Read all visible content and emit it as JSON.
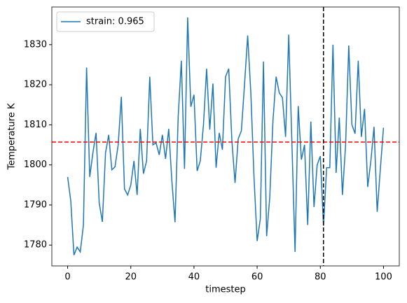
{
  "chart_data": {
    "type": "line",
    "xlabel": "timestep",
    "ylabel": "Temperature K",
    "x": [
      0,
      1,
      2,
      3,
      4,
      5,
      6,
      7,
      8,
      9,
      10,
      11,
      12,
      13,
      14,
      15,
      16,
      17,
      18,
      19,
      20,
      21,
      22,
      23,
      24,
      25,
      26,
      27,
      28,
      29,
      30,
      31,
      32,
      33,
      34,
      35,
      36,
      37,
      38,
      39,
      40,
      41,
      42,
      43,
      44,
      45,
      46,
      47,
      48,
      49,
      50,
      51,
      52,
      53,
      54,
      55,
      56,
      57,
      58,
      59,
      60,
      61,
      62,
      63,
      64,
      65,
      66,
      67,
      68,
      69,
      70,
      71,
      72,
      73,
      74,
      75,
      76,
      77,
      78,
      79,
      80,
      81,
      82,
      83,
      84,
      85,
      86,
      87,
      88,
      89,
      90,
      91,
      92,
      93,
      94,
      95,
      96,
      97,
      98,
      99,
      100
    ],
    "series": [
      {
        "name": "strain: 0.965",
        "color": "#1f77b4",
        "values": [
          1797,
          1791,
          1777.5,
          1779.5,
          1778.3,
          1785,
          1824.3,
          1797,
          1803,
          1808,
          1790.5,
          1785.8,
          1803,
          1807.5,
          1798.8,
          1799.5,
          1805,
          1817,
          1794,
          1792.5,
          1795,
          1801,
          1792.5,
          1809,
          1797.8,
          1801,
          1822,
          1805,
          1805.5,
          1802.5,
          1807.5,
          1801.5,
          1809,
          1796,
          1785.7,
          1812,
          1826,
          1799,
          1836.8,
          1814.5,
          1817.5,
          1798.5,
          1801,
          1810,
          1824,
          1808.8,
          1820.3,
          1799.3,
          1808,
          1803.8,
          1822,
          1824,
          1806,
          1795.5,
          1806.5,
          1808.5,
          1820,
          1832.3,
          1818,
          1797,
          1781,
          1786.5,
          1825.8,
          1782.2,
          1792,
          1811,
          1822,
          1818,
          1816.8,
          1807,
          1832.5,
          1805.5,
          1778.3,
          1814.7,
          1801.3,
          1805,
          1785,
          1810.8,
          1789.5,
          1800,
          1802.2,
          1784.8,
          1799.3,
          1799.3,
          1830,
          1798,
          1811.8,
          1792.5,
          1805,
          1829.8,
          1810,
          1807.8,
          1826,
          1807,
          1814,
          1794.5,
          1801,
          1809.5,
          1788.3,
          1799,
          1809.3
        ]
      }
    ],
    "hline": {
      "value": 1805.7,
      "color": "#ff0000"
    },
    "vline": {
      "value": 81,
      "color": "#000000"
    },
    "xlim": [
      -5,
      105
    ],
    "xticks": [
      0,
      20,
      40,
      60,
      80,
      100
    ],
    "ylim": [
      1774.8,
      1839.4
    ],
    "yticks": [
      1780,
      1790,
      1800,
      1810,
      1820,
      1830
    ],
    "legend": "upper left"
  }
}
